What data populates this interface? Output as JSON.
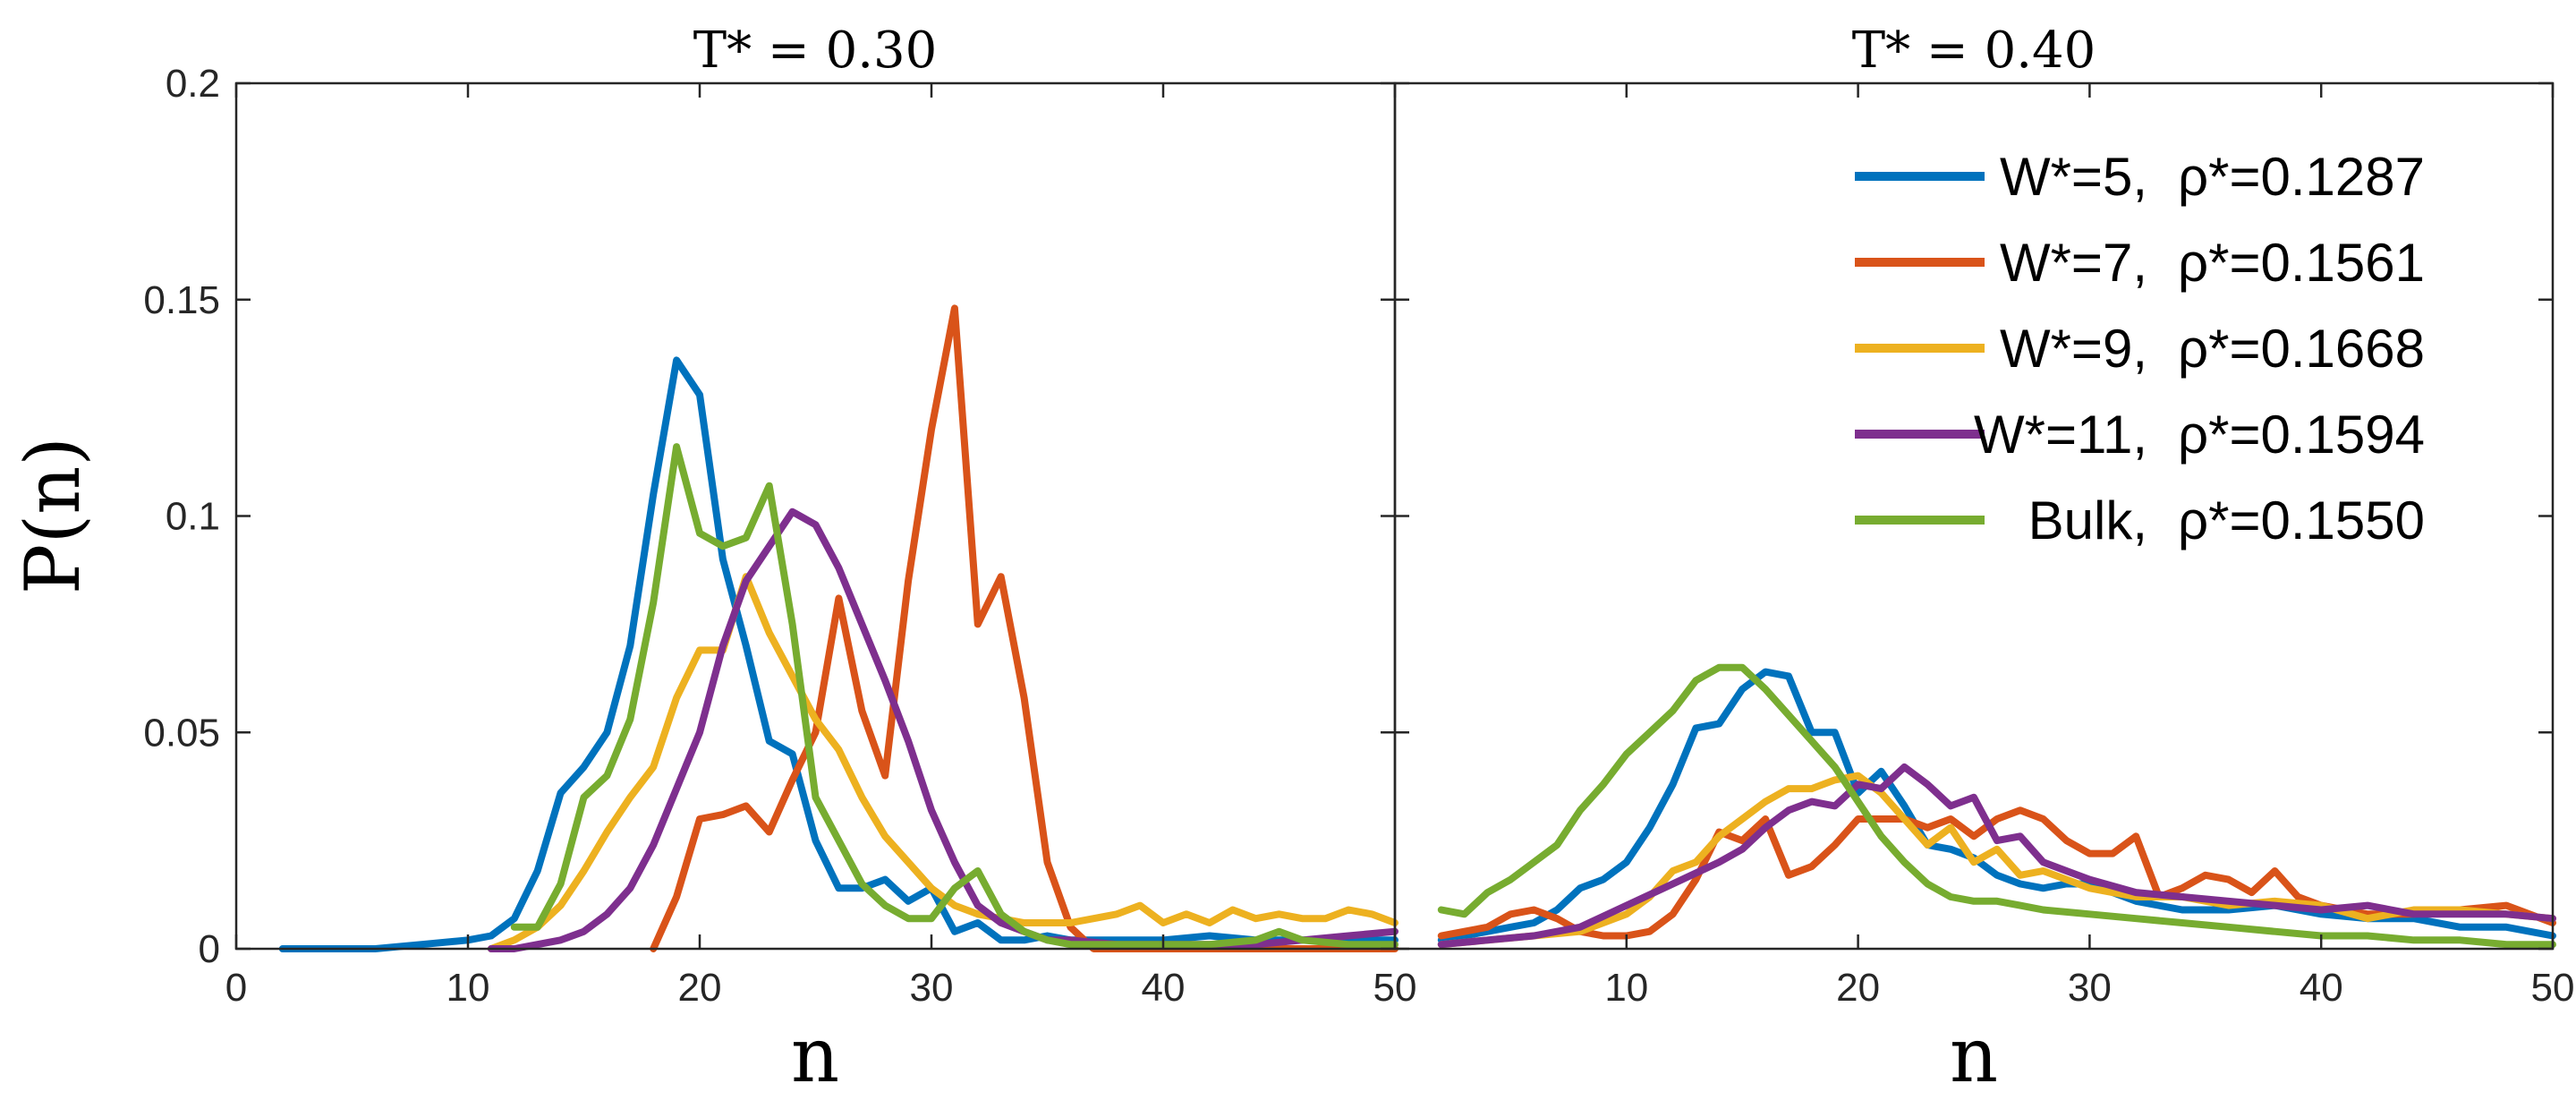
{
  "chart_data": [
    {
      "type": "line",
      "title": "T* = 0.30",
      "xlabel": "n",
      "ylabel": "P(n)",
      "xlim": [
        0,
        50
      ],
      "ylim": [
        0,
        0.2
      ],
      "xticks": [
        0,
        10,
        20,
        30,
        40,
        50
      ],
      "yticks": [
        0,
        0.05,
        0.1,
        0.15,
        0.2
      ],
      "ytick_labels": [
        "0",
        "0.05",
        "0.1",
        "0.15",
        "0.2"
      ],
      "grid": false,
      "series": [
        {
          "color": "#0072BD",
          "x": [
            2,
            4,
            6,
            8,
            10,
            11,
            12,
            13,
            14,
            15,
            16,
            17,
            18,
            19,
            20,
            21,
            22,
            23,
            24,
            25,
            26,
            27,
            28,
            29,
            30,
            31,
            32,
            33,
            34,
            35,
            36,
            38,
            40,
            42,
            44,
            46,
            48,
            50
          ],
          "y": [
            0,
            0,
            0,
            0.001,
            0.002,
            0.003,
            0.007,
            0.018,
            0.036,
            0.042,
            0.05,
            0.07,
            0.105,
            0.136,
            0.128,
            0.09,
            0.07,
            0.048,
            0.045,
            0.025,
            0.014,
            0.014,
            0.016,
            0.011,
            0.014,
            0.004,
            0.006,
            0.002,
            0.002,
            0.003,
            0.002,
            0.002,
            0.002,
            0.003,
            0.002,
            0.002,
            0.002,
            0.002
          ]
        },
        {
          "color": "#D95319",
          "x": [
            18,
            19,
            20,
            21,
            22,
            23,
            24,
            25,
            26,
            27,
            28,
            29,
            30,
            31,
            32,
            33,
            34,
            35,
            36,
            37,
            40,
            45,
            50
          ],
          "y": [
            0,
            0.012,
            0.03,
            0.031,
            0.033,
            0.027,
            0.039,
            0.05,
            0.081,
            0.055,
            0.04,
            0.085,
            0.12,
            0.148,
            0.075,
            0.086,
            0.058,
            0.02,
            0.005,
            0,
            0,
            0,
            0
          ]
        },
        {
          "color": "#EDB120",
          "x": [
            11,
            12,
            13,
            14,
            15,
            16,
            17,
            18,
            19,
            20,
            21,
            22,
            23,
            24,
            25,
            26,
            27,
            28,
            29,
            30,
            31,
            32,
            33,
            34,
            35,
            36,
            37,
            38,
            39,
            40,
            41,
            42,
            43,
            44,
            45,
            46,
            47,
            48,
            49,
            50
          ],
          "y": [
            0,
            0.002,
            0.005,
            0.01,
            0.018,
            0.027,
            0.035,
            0.042,
            0.058,
            0.069,
            0.069,
            0.086,
            0.073,
            0.063,
            0.053,
            0.046,
            0.035,
            0.026,
            0.02,
            0.014,
            0.01,
            0.008,
            0.007,
            0.006,
            0.006,
            0.006,
            0.007,
            0.008,
            0.01,
            0.006,
            0.008,
            0.006,
            0.009,
            0.007,
            0.008,
            0.007,
            0.007,
            0.009,
            0.008,
            0.006
          ]
        },
        {
          "color": "#7E2F8E",
          "x": [
            11,
            12,
            13,
            14,
            15,
            16,
            17,
            18,
            19,
            20,
            21,
            22,
            23,
            24,
            25,
            26,
            27,
            28,
            29,
            30,
            31,
            32,
            33,
            34,
            35,
            36,
            38,
            40,
            42,
            44,
            46,
            48,
            50
          ],
          "y": [
            0,
            0,
            0.001,
            0.002,
            0.004,
            0.008,
            0.014,
            0.024,
            0.037,
            0.05,
            0.07,
            0.085,
            0.093,
            0.101,
            0.098,
            0.088,
            0.075,
            0.062,
            0.048,
            0.032,
            0.02,
            0.01,
            0.006,
            0.004,
            0.002,
            0.002,
            0.001,
            0.001,
            0.001,
            0.001,
            0.002,
            0.003,
            0.004
          ]
        },
        {
          "color": "#77AC30",
          "x": [
            12,
            13,
            14,
            15,
            16,
            17,
            18,
            19,
            20,
            21,
            22,
            23,
            24,
            25,
            26,
            27,
            28,
            29,
            30,
            31,
            32,
            33,
            34,
            35,
            36,
            38,
            40,
            42,
            44,
            45,
            46,
            48,
            50
          ],
          "y": [
            0.005,
            0.005,
            0.015,
            0.035,
            0.04,
            0.053,
            0.08,
            0.116,
            0.096,
            0.093,
            0.095,
            0.107,
            0.075,
            0.035,
            0.025,
            0.015,
            0.01,
            0.007,
            0.007,
            0.014,
            0.018,
            0.008,
            0.004,
            0.002,
            0.001,
            0.001,
            0.001,
            0.001,
            0.002,
            0.004,
            0.002,
            0.001,
            0.001
          ]
        }
      ]
    },
    {
      "type": "line",
      "title": "T* = 0.40",
      "xlabel": "n",
      "ylabel": "",
      "xlim": [
        0,
        50
      ],
      "ylim": [
        0,
        0.2
      ],
      "xticks": [
        10,
        20,
        30,
        40,
        50
      ],
      "grid": false,
      "legend_position": "top-right",
      "series": [
        {
          "name": "W*=5, ρ*=0.1287",
          "legend_main": "W*=5,",
          "legend_rho": "ρ*=0.1287",
          "color": "#0072BD",
          "x": [
            2,
            3,
            4,
            5,
            6,
            7,
            8,
            9,
            10,
            11,
            12,
            13,
            14,
            15,
            16,
            17,
            18,
            19,
            20,
            21,
            22,
            23,
            24,
            25,
            26,
            27,
            28,
            29,
            30,
            32,
            34,
            36,
            38,
            40,
            42,
            44,
            46,
            48,
            50
          ],
          "y": [
            0.002,
            0.003,
            0.004,
            0.005,
            0.006,
            0.009,
            0.014,
            0.016,
            0.02,
            0.028,
            0.038,
            0.051,
            0.052,
            0.06,
            0.064,
            0.063,
            0.05,
            0.05,
            0.036,
            0.041,
            0.033,
            0.024,
            0.023,
            0.021,
            0.017,
            0.015,
            0.014,
            0.015,
            0.015,
            0.011,
            0.009,
            0.009,
            0.01,
            0.008,
            0.007,
            0.007,
            0.005,
            0.005,
            0.003
          ]
        },
        {
          "name": "W*=7, ρ*=0.1561",
          "legend_main": "W*=7,",
          "legend_rho": "ρ*=0.1561",
          "color": "#D95319",
          "x": [
            2,
            3,
            4,
            5,
            6,
            7,
            8,
            9,
            10,
            11,
            12,
            13,
            14,
            15,
            16,
            17,
            18,
            19,
            20,
            21,
            22,
            23,
            24,
            25,
            26,
            27,
            28,
            29,
            30,
            31,
            32,
            33,
            34,
            35,
            36,
            37,
            38,
            39,
            40,
            42,
            44,
            46,
            48,
            50
          ],
          "y": [
            0.003,
            0.004,
            0.005,
            0.008,
            0.009,
            0.007,
            0.004,
            0.003,
            0.003,
            0.004,
            0.008,
            0.016,
            0.027,
            0.025,
            0.03,
            0.017,
            0.019,
            0.024,
            0.03,
            0.03,
            0.03,
            0.028,
            0.03,
            0.026,
            0.03,
            0.032,
            0.03,
            0.025,
            0.022,
            0.022,
            0.026,
            0.012,
            0.014,
            0.017,
            0.016,
            0.013,
            0.018,
            0.012,
            0.01,
            0.008,
            0.008,
            0.009,
            0.01,
            0.006
          ]
        },
        {
          "name": "W*=9, ρ*=0.1668",
          "legend_main": "W*=9,",
          "legend_rho": "ρ*=0.1668",
          "color": "#EDB120",
          "x": [
            2,
            4,
            6,
            8,
            10,
            11,
            12,
            13,
            14,
            15,
            16,
            17,
            18,
            19,
            20,
            21,
            22,
            23,
            24,
            25,
            26,
            27,
            28,
            29,
            30,
            32,
            34,
            36,
            38,
            40,
            42,
            44,
            46,
            48,
            50
          ],
          "y": [
            0.001,
            0.002,
            0.003,
            0.004,
            0.008,
            0.012,
            0.018,
            0.02,
            0.026,
            0.03,
            0.034,
            0.037,
            0.037,
            0.039,
            0.04,
            0.036,
            0.03,
            0.024,
            0.028,
            0.02,
            0.023,
            0.017,
            0.018,
            0.016,
            0.014,
            0.012,
            0.012,
            0.01,
            0.011,
            0.01,
            0.007,
            0.009,
            0.009,
            0.008,
            0.007
          ]
        },
        {
          "name": "W*=11, ρ*=0.1594",
          "legend_main": "W*=11,",
          "legend_rho": "ρ*=0.1594",
          "color": "#7E2F8E",
          "x": [
            2,
            4,
            6,
            8,
            10,
            12,
            14,
            15,
            16,
            17,
            18,
            19,
            20,
            21,
            22,
            23,
            24,
            25,
            26,
            27,
            28,
            29,
            30,
            32,
            34,
            36,
            38,
            40,
            42,
            44,
            46,
            48,
            50
          ],
          "y": [
            0.001,
            0.002,
            0.003,
            0.005,
            0.01,
            0.015,
            0.02,
            0.023,
            0.028,
            0.032,
            0.034,
            0.033,
            0.038,
            0.037,
            0.042,
            0.038,
            0.033,
            0.035,
            0.025,
            0.026,
            0.02,
            0.018,
            0.016,
            0.013,
            0.012,
            0.011,
            0.01,
            0.009,
            0.01,
            0.008,
            0.008,
            0.008,
            0.007
          ]
        },
        {
          "name": "Bulk, ρ*=0.1550",
          "legend_main": "Bulk,",
          "legend_rho": "ρ*=0.1550",
          "color": "#77AC30",
          "x": [
            2,
            3,
            4,
            5,
            6,
            7,
            8,
            9,
            10,
            11,
            12,
            13,
            14,
            15,
            16,
            17,
            18,
            19,
            20,
            21,
            22,
            23,
            24,
            25,
            26,
            27,
            28,
            30,
            32,
            34,
            36,
            38,
            40,
            42,
            44,
            46,
            48,
            50
          ],
          "y": [
            0.009,
            0.008,
            0.013,
            0.016,
            0.02,
            0.024,
            0.032,
            0.038,
            0.045,
            0.05,
            0.055,
            0.062,
            0.065,
            0.065,
            0.06,
            0.054,
            0.048,
            0.042,
            0.034,
            0.026,
            0.02,
            0.015,
            0.012,
            0.011,
            0.011,
            0.01,
            0.009,
            0.008,
            0.007,
            0.006,
            0.005,
            0.004,
            0.003,
            0.003,
            0.002,
            0.002,
            0.001,
            0.001
          ]
        }
      ]
    }
  ]
}
